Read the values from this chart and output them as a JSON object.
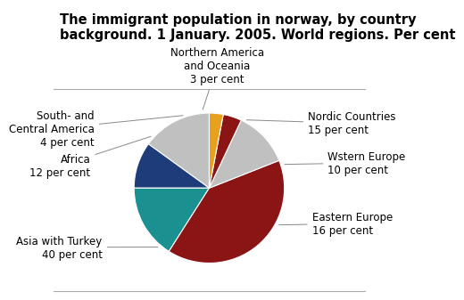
{
  "title": "The immigrant population in norway, by country\nbackground. 1 January. 2005. World regions. Per cent",
  "slices": [
    {
      "label": "Nordic Countries",
      "sublabel": "15 per cent",
      "value": 15,
      "color": "#c0c0c0"
    },
    {
      "label": "Wstern Europe",
      "sublabel": "10 per cent",
      "value": 10,
      "color": "#1e3c7a"
    },
    {
      "label": "Eastern Europe",
      "sublabel": "16 per cent",
      "value": 16,
      "color": "#1a9090"
    },
    {
      "label": "Asia with Turkey",
      "sublabel": "40 per cent",
      "value": 40,
      "color": "#8b1515"
    },
    {
      "label": "Africa",
      "sublabel": "12 per cent",
      "value": 12,
      "color": "#c0c0c0"
    },
    {
      "label": "South- and\nCentral America",
      "sublabel": "4 per cent",
      "value": 4,
      "color": "#8b1515"
    },
    {
      "label": "Northern America\nand Oceania",
      "sublabel": "3 per cent",
      "value": 3,
      "color": "#e8a020"
    }
  ],
  "start_angle": 90,
  "background_color": "#ffffff",
  "title_fontsize": 10.5,
  "label_fontsize": 8.5
}
